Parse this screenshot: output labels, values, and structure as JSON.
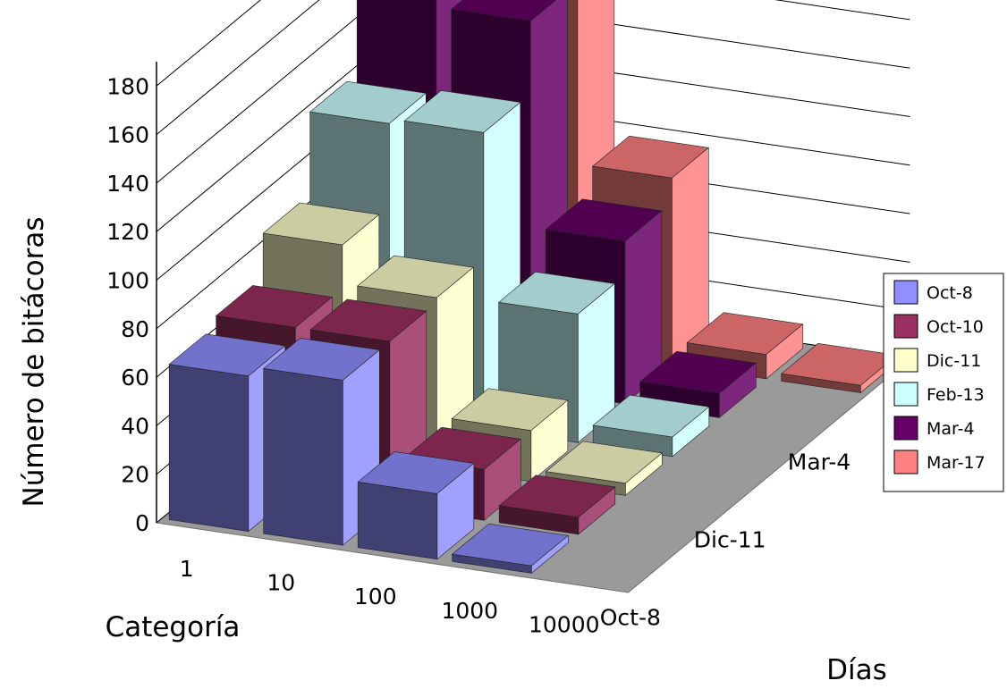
{
  "chart_data": {
    "type": "bar",
    "subtype": "3d-bar",
    "title": "",
    "xlabel": "Categoría",
    "ylabel": "Número de bitácoras",
    "zlabel": "Días",
    "categories": [
      "1",
      "10",
      "100",
      "1000",
      "10000"
    ],
    "depth_tick_labels": [
      "Oct-8",
      "Dic-11",
      "Mar-4"
    ],
    "yticks": [
      0,
      20,
      40,
      60,
      80,
      100,
      120,
      140,
      160,
      180
    ],
    "ylim": [
      0,
      190
    ],
    "grid": true,
    "legend_position": "right",
    "series": [
      {
        "name": "Oct-8",
        "color": "#8f8fff",
        "values": [
          64,
          68,
          27,
          3,
          0
        ]
      },
      {
        "name": "Oct-10",
        "color": "#9b3062",
        "values": [
          68,
          68,
          21,
          7,
          0
        ]
      },
      {
        "name": "Dic-11",
        "color": "#ffffcc",
        "values": [
          86,
          70,
          21,
          5,
          0
        ]
      },
      {
        "name": "Feb-13",
        "color": "#ccffff",
        "values": [
          120,
          122,
          53,
          8,
          0
        ]
      },
      {
        "name": "Mar-4",
        "color": "#660066",
        "values": [
          160,
          152,
          67,
          10,
          0
        ]
      },
      {
        "name": "Mar-17",
        "color": "#ff8080",
        "values": [
          183,
          163,
          77,
          10,
          3
        ]
      }
    ]
  }
}
